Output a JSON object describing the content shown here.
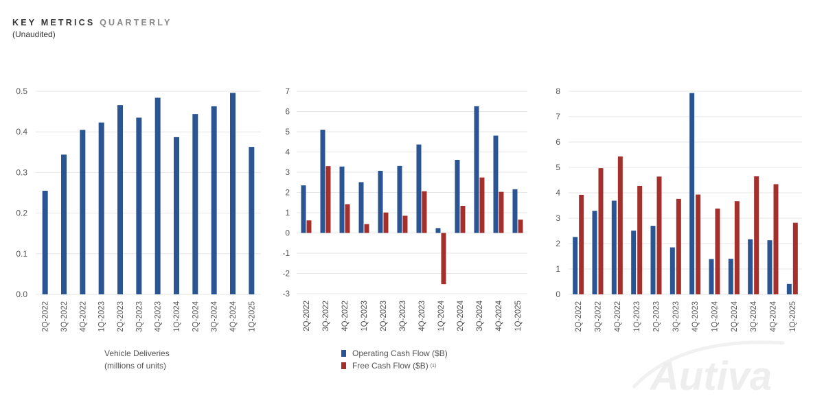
{
  "header": {
    "title_main": "KEY METRICS",
    "title_sub": "QUARTERLY",
    "subtitle": "(Unaudited)"
  },
  "colors": {
    "blue": "#2a5592",
    "red": "#a3302c",
    "grid": "#e6e6e6",
    "tick": "#555555"
  },
  "chart_data": [
    {
      "type": "bar",
      "categories": [
        "2Q-2022",
        "3Q-2022",
        "4Q-2022",
        "1Q-2023",
        "2Q-2023",
        "3Q-2023",
        "4Q-2023",
        "1Q-2024",
        "2Q-2024",
        "3Q-2024",
        "4Q-2024",
        "1Q-2025"
      ],
      "series": [
        {
          "values": [
            0.255,
            0.344,
            0.405,
            0.423,
            0.466,
            0.435,
            0.484,
            0.387,
            0.444,
            0.463,
            0.496,
            0.363
          ]
        }
      ],
      "ylim": [
        0,
        0.5
      ],
      "yticks": [
        "0.0",
        "0.1",
        "0.2",
        "0.3",
        "0.4",
        "0.5"
      ],
      "caption": [
        "Vehicle Deliveries",
        "(millions of units)"
      ]
    },
    {
      "type": "bar",
      "categories": [
        "2Q-2022",
        "3Q-2022",
        "4Q-2022",
        "1Q-2023",
        "2Q-2023",
        "3Q-2023",
        "4Q-2023",
        "1Q-2024",
        "2Q-2024",
        "3Q-2024",
        "4Q-2024",
        "1Q-2025"
      ],
      "series": [
        {
          "name": "Operating Cash Flow ($B)",
          "values": [
            2.35,
            5.1,
            3.28,
            2.51,
            3.07,
            3.31,
            4.37,
            0.24,
            3.61,
            6.26,
            4.81,
            2.16
          ]
        },
        {
          "name": "Free Cash Flow ($B)",
          "superscript": "(1)",
          "values": [
            0.62,
            3.3,
            1.42,
            0.44,
            1.01,
            0.85,
            2.06,
            -2.53,
            1.34,
            2.74,
            2.03,
            0.66
          ]
        }
      ],
      "ylim": [
        -3,
        7
      ],
      "yticks": [
        "-3",
        "-2",
        "-1",
        "0",
        "1",
        "2",
        "3",
        "4",
        "5",
        "6",
        "7"
      ]
    },
    {
      "type": "bar",
      "categories": [
        "2Q-2022",
        "3Q-2022",
        "4Q-2022",
        "1Q-2023",
        "2Q-2023",
        "3Q-2023",
        "4Q-2023",
        "1Q-2024",
        "2Q-2024",
        "3Q-2024",
        "4Q-2024",
        "1Q-2025"
      ],
      "series": [
        {
          "values": [
            2.26,
            3.29,
            3.69,
            2.51,
            2.7,
            1.85,
            7.93,
            1.39,
            1.4,
            2.17,
            2.13,
            0.41
          ]
        },
        {
          "values": [
            3.92,
            4.97,
            5.43,
            4.27,
            4.64,
            3.76,
            3.93,
            3.38,
            3.67,
            4.65,
            4.34,
            2.82
          ]
        }
      ],
      "ylim": [
        0,
        8
      ],
      "yticks": [
        "0",
        "1",
        "2",
        "3",
        "4",
        "5",
        "6",
        "7",
        "8"
      ]
    }
  ],
  "legend": {
    "ocf": "Operating Cash Flow ($B)",
    "fcf": "Free Cash Flow ($B)",
    "fcf_sup": "(1)"
  },
  "caption1": {
    "line1": "Vehicle Deliveries",
    "line2": "(millions of units)"
  },
  "watermark": "Autiva"
}
